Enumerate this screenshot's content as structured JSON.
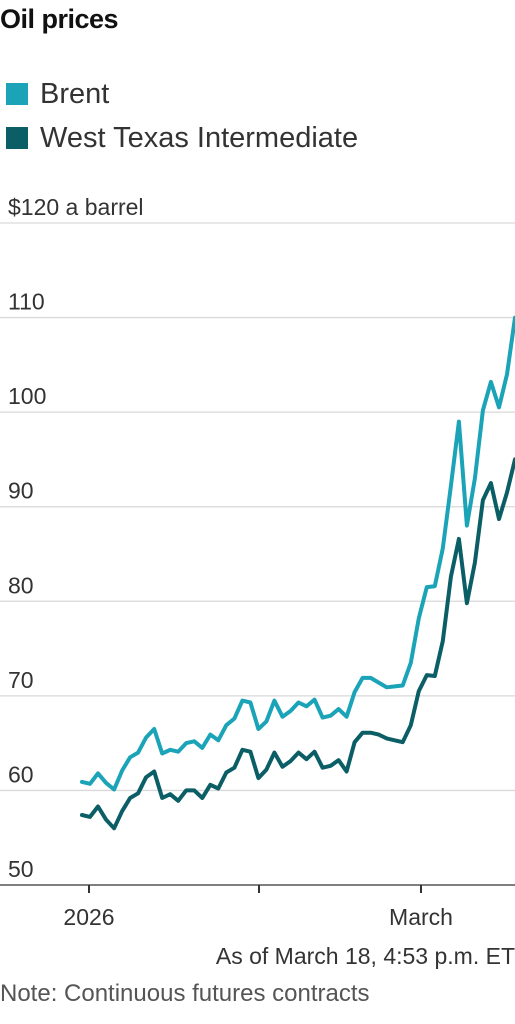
{
  "title": "Oil prices",
  "legend": [
    {
      "label": "Brent",
      "color": "#1ba3b8"
    },
    {
      "label": "West Texas Intermediate",
      "color": "#0b5e66"
    }
  ],
  "footer": "As of March 18, 4:53 p.m. ET",
  "note": "Note: Continuous futures contracts",
  "chart_data": {
    "type": "line",
    "x_tick_labels": [
      "2026",
      "",
      "March"
    ],
    "y_ticks": [
      50,
      60,
      70,
      80,
      90,
      100,
      110,
      120
    ],
    "y_tick_labels": [
      "50",
      "60",
      "70",
      "80",
      "90",
      "100",
      "110",
      "$120 a barrel"
    ],
    "ylim": [
      50,
      120
    ],
    "grid": true,
    "legend_position": "top-left",
    "series": [
      {
        "name": "Brent",
        "color": "#1ba3b8",
        "values": [
          60.9,
          60.7,
          61.8,
          60.8,
          60.1,
          62.1,
          63.5,
          64.0,
          65.6,
          66.5,
          63.9,
          64.3,
          64.1,
          65.0,
          65.2,
          64.5,
          65.9,
          65.3,
          66.9,
          67.6,
          69.5,
          69.3,
          66.5,
          67.3,
          69.5,
          67.8,
          68.4,
          69.3,
          68.9,
          69.6,
          67.7,
          67.9,
          68.6,
          67.8,
          70.4,
          71.9,
          71.9,
          71.4,
          70.9,
          71.0,
          71.1,
          73.5,
          78.2,
          81.5,
          81.6,
          85.6,
          92.2,
          99.0,
          88.0,
          93.0,
          100.2,
          103.2,
          100.5,
          104.0,
          110.0
        ]
      },
      {
        "name": "West Texas Intermediate",
        "color": "#0b5e66",
        "values": [
          57.4,
          57.2,
          58.3,
          56.9,
          56.0,
          57.8,
          59.2,
          59.7,
          61.4,
          62.0,
          59.2,
          59.6,
          58.9,
          60.0,
          60.0,
          59.2,
          60.6,
          60.2,
          61.9,
          62.4,
          64.3,
          64.1,
          61.3,
          62.2,
          64.0,
          62.5,
          63.1,
          64.0,
          63.3,
          64.1,
          62.4,
          62.6,
          63.2,
          62.0,
          65.1,
          66.1,
          66.1,
          65.9,
          65.5,
          65.3,
          65.1,
          66.9,
          70.5,
          72.2,
          72.1,
          75.8,
          82.6,
          86.6,
          79.8,
          84.1,
          90.7,
          92.5,
          88.7,
          91.5,
          95.0
        ]
      }
    ]
  }
}
